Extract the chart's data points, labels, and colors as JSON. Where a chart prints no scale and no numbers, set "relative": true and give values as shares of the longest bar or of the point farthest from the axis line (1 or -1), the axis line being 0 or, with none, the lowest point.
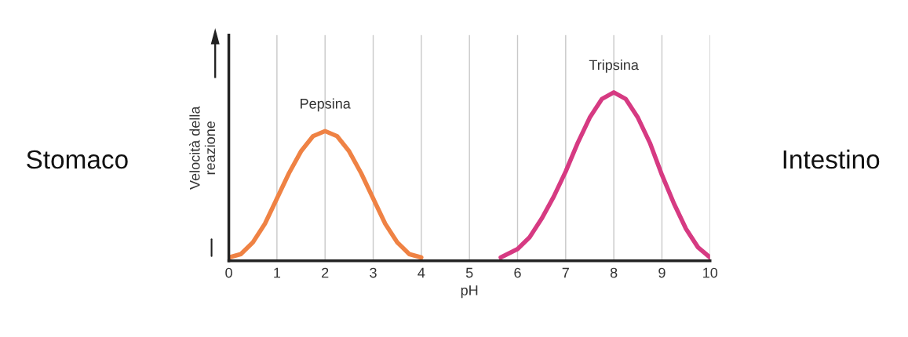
{
  "chart_data": {
    "type": "line",
    "relative": true,
    "xlabel": "pH",
    "ylabel": "Velocità della\nreazione",
    "xlim": [
      0,
      10
    ],
    "xticks": [
      0,
      1,
      2,
      3,
      4,
      5,
      6,
      7,
      8,
      9,
      10
    ],
    "grid": "x",
    "legend": false,
    "annotations": [
      "Stomaco",
      "Intestino"
    ],
    "series": [
      {
        "name": "Pepsina",
        "color": "#ef8244",
        "x": [
          0,
          0.25,
          0.5,
          0.75,
          1,
          1.25,
          1.5,
          1.75,
          2,
          2.25,
          2.5,
          2.75,
          3,
          3.25,
          3.5,
          3.75,
          4
        ],
        "values": [
          0.02,
          0.04,
          0.11,
          0.22,
          0.37,
          0.52,
          0.65,
          0.74,
          0.77,
          0.74,
          0.65,
          0.52,
          0.37,
          0.22,
          0.11,
          0.04,
          0.02
        ]
      },
      {
        "name": "Tripsina",
        "color": "#d63a82",
        "x": [
          5.65,
          6,
          6.25,
          6.5,
          6.75,
          7,
          7.25,
          7.5,
          7.75,
          8,
          8.25,
          8.5,
          8.75,
          9,
          9.25,
          9.5,
          9.75,
          10
        ],
        "values": [
          0.02,
          0.07,
          0.14,
          0.25,
          0.38,
          0.53,
          0.7,
          0.85,
          0.96,
          1,
          0.96,
          0.85,
          0.7,
          0.51,
          0.34,
          0.19,
          0.08,
          0.02
        ]
      }
    ]
  }
}
